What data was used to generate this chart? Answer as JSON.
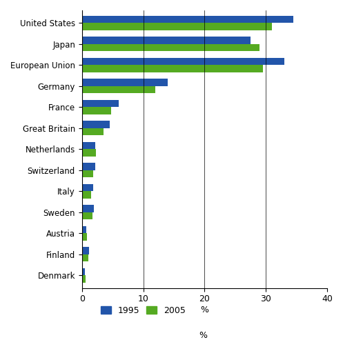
{
  "categories": [
    "United States",
    "Japan",
    "European Union",
    "Germany",
    "France",
    "Great Britain",
    "Netherlands",
    "Switzerland",
    "Italy",
    "Sweden",
    "Austria",
    "Finland",
    "Denmark"
  ],
  "values_1995": [
    34.5,
    27.5,
    33.0,
    14.0,
    6.0,
    4.5,
    2.2,
    2.2,
    1.8,
    2.0,
    0.7,
    1.2,
    0.5
  ],
  "values_2005": [
    31.0,
    29.0,
    29.5,
    12.0,
    4.8,
    3.5,
    2.3,
    1.8,
    1.5,
    1.7,
    0.8,
    1.0,
    0.6
  ],
  "color_1995": "#2255aa",
  "color_2005": "#55aa22",
  "xlabel": "%",
  "xlim": [
    0,
    40
  ],
  "xticks": [
    0,
    10,
    20,
    30,
    40
  ],
  "legend_labels": [
    "1995",
    "2005"
  ],
  "bar_height": 0.35,
  "title": ""
}
